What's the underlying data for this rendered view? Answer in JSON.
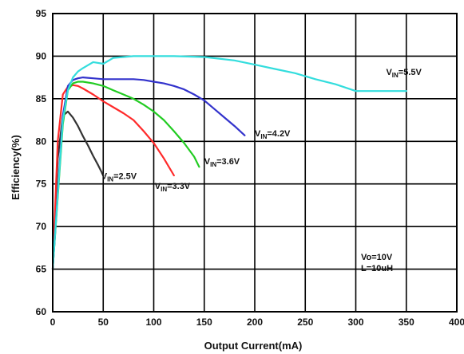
{
  "chart_data": {
    "type": "line",
    "xlabel": "Output Current(mA)",
    "ylabel": "Efficiency(%)",
    "xlim": [
      0,
      400
    ],
    "ylim": [
      60,
      95
    ],
    "xticks": [
      0,
      50,
      100,
      150,
      200,
      250,
      300,
      350,
      400
    ],
    "yticks": [
      60,
      65,
      70,
      75,
      80,
      85,
      90,
      95
    ],
    "grid": true,
    "series": [
      {
        "name": "VIN=2.5V",
        "label_main": "V",
        "label_sub": "IN",
        "label_value": "=2.5V",
        "color": "#333333",
        "x": [
          0,
          5,
          10,
          15,
          20,
          25,
          30,
          35,
          40,
          45,
          50
        ],
        "y": [
          65,
          78,
          83,
          83.5,
          82.8,
          81.8,
          80.6,
          79.5,
          78.3,
          77.2,
          76
        ]
      },
      {
        "name": "VIN=3.3V",
        "label_main": "V",
        "label_sub": "IN",
        "label_value": "=3.3V",
        "color": "#ff2a2a",
        "x": [
          0,
          5,
          10,
          15,
          20,
          25,
          30,
          40,
          50,
          60,
          70,
          80,
          90,
          100,
          110,
          120
        ],
        "y": [
          65,
          80,
          85.5,
          86.4,
          86.6,
          86.5,
          86.2,
          85.5,
          84.7,
          84,
          83.3,
          82.5,
          81.2,
          79.8,
          78,
          76
        ]
      },
      {
        "name": "VIN=3.6V",
        "label_main": "V",
        "label_sub": "IN",
        "label_value": "=3.6V",
        "color": "#22cc22",
        "x": [
          0,
          10,
          15,
          20,
          25,
          30,
          40,
          50,
          60,
          70,
          80,
          90,
          100,
          110,
          120,
          130,
          140,
          145
        ],
        "y": [
          65,
          82,
          86,
          86.8,
          87,
          87,
          86.8,
          86.5,
          86,
          85.5,
          85,
          84.3,
          83.5,
          82.5,
          81.2,
          79.8,
          78.2,
          77
        ]
      },
      {
        "name": "VIN=4.2V",
        "label_main": "V",
        "label_sub": "IN",
        "label_value": "=4.2V",
        "color": "#3333cc",
        "x": [
          0,
          10,
          15,
          20,
          25,
          30,
          40,
          50,
          60,
          70,
          80,
          90,
          100,
          110,
          120,
          130,
          140,
          150,
          160,
          170,
          180,
          190
        ],
        "y": [
          65,
          83,
          86.5,
          87.2,
          87.4,
          87.5,
          87.4,
          87.3,
          87.3,
          87.3,
          87.3,
          87.2,
          87,
          86.8,
          86.5,
          86.1,
          85.5,
          84.8,
          83.8,
          82.8,
          81.8,
          80.7
        ]
      },
      {
        "name": "VIN=5.5V",
        "label_main": "V",
        "label_sub": "IN",
        "label_value": "=5.5V",
        "color": "#33dddd",
        "x": [
          0,
          10,
          15,
          20,
          25,
          30,
          40,
          50,
          60,
          80,
          100,
          120,
          150,
          180,
          200,
          220,
          240,
          260,
          280,
          300,
          320,
          350
        ],
        "y": [
          65,
          82.5,
          86,
          87.5,
          88.2,
          88.6,
          89.3,
          89.1,
          89.8,
          90,
          90,
          90,
          89.9,
          89.5,
          89,
          88.5,
          88,
          87.3,
          86.7,
          85.9,
          85.9,
          85.9
        ]
      }
    ],
    "annotations": {
      "vo": "Vo=10V",
      "l": "L=10uH"
    }
  }
}
